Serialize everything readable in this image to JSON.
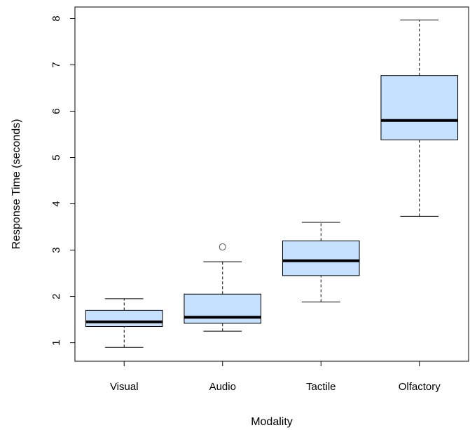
{
  "chart_data": {
    "type": "boxplot",
    "title": "",
    "xlabel": "Modality",
    "ylabel": "Response Time (seconds)",
    "ylim": [
      0.6,
      8.25
    ],
    "yticks": [
      "1",
      "2",
      "3",
      "4",
      "5",
      "6",
      "7",
      "8"
    ],
    "grid": false,
    "box_fill": "#c6e0ff",
    "categories": [
      "Visual",
      "Audio",
      "Tactile",
      "Olfactory"
    ],
    "boxes": [
      {
        "category": "Visual",
        "whisker_low": 0.9,
        "q1": 1.35,
        "median": 1.45,
        "q3": 1.7,
        "whisker_high": 1.95,
        "outliers": []
      },
      {
        "category": "Audio",
        "whisker_low": 1.25,
        "q1": 1.42,
        "median": 1.55,
        "q3": 2.05,
        "whisker_high": 2.75,
        "outliers": [
          3.07
        ]
      },
      {
        "category": "Tactile",
        "whisker_low": 1.88,
        "q1": 2.45,
        "median": 2.77,
        "q3": 3.2,
        "whisker_high": 3.6,
        "outliers": []
      },
      {
        "category": "Olfactory",
        "whisker_low": 3.73,
        "q1": 5.38,
        "median": 5.8,
        "q3": 6.77,
        "whisker_high": 7.97,
        "outliers": []
      }
    ]
  }
}
